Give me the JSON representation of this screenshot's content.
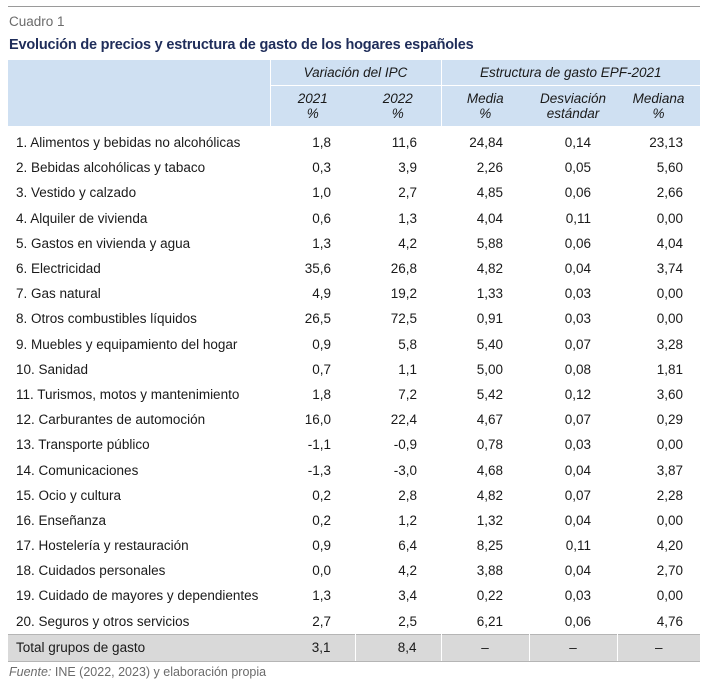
{
  "cuadro_label": "Cuadro 1",
  "title": "Evolución de precios y estructura de gasto de los hogares españoles",
  "header": {
    "group_ipc": "Variación del IPC",
    "group_epf": "Estructura de gasto EPF-2021",
    "columns": [
      {
        "line1": "2021",
        "line2": "%"
      },
      {
        "line1": "2022",
        "line2": "%"
      },
      {
        "line1": "Media",
        "line2": "%"
      },
      {
        "line1": "Desviación",
        "line2": "estándar"
      },
      {
        "line1": "Mediana",
        "line2": "%"
      }
    ]
  },
  "rows": [
    {
      "label": "1. Alimentos y bebidas no alcohólicas",
      "ipc2021": "1,8",
      "ipc2022": "11,6",
      "media": "24,84",
      "desv": "0,14",
      "mediana": "23,13"
    },
    {
      "label": "2. Bebidas alcohólicas y tabaco",
      "ipc2021": "0,3",
      "ipc2022": "3,9",
      "media": "2,26",
      "desv": "0,05",
      "mediana": "5,60"
    },
    {
      "label": "3. Vestido y calzado",
      "ipc2021": "1,0",
      "ipc2022": "2,7",
      "media": "4,85",
      "desv": "0,06",
      "mediana": "2,66"
    },
    {
      "label": "4. Alquiler de vivienda",
      "ipc2021": "0,6",
      "ipc2022": "1,3",
      "media": "4,04",
      "desv": "0,11",
      "mediana": "0,00"
    },
    {
      "label": "5. Gastos en vivienda y agua",
      "ipc2021": "1,3",
      "ipc2022": "4,2",
      "media": "5,88",
      "desv": "0,06",
      "mediana": "4,04"
    },
    {
      "label": "6. Electricidad",
      "ipc2021": "35,6",
      "ipc2022": "26,8",
      "media": "4,82",
      "desv": "0,04",
      "mediana": "3,74"
    },
    {
      "label": "7. Gas natural",
      "ipc2021": "4,9",
      "ipc2022": "19,2",
      "media": "1,33",
      "desv": "0,03",
      "mediana": "0,00"
    },
    {
      "label": "8. Otros combustibles líquidos",
      "ipc2021": "26,5",
      "ipc2022": "72,5",
      "media": "0,91",
      "desv": "0,03",
      "mediana": "0,00"
    },
    {
      "label": "9. Muebles y equipamiento del hogar",
      "ipc2021": "0,9",
      "ipc2022": "5,8",
      "media": "5,40",
      "desv": "0,07",
      "mediana": "3,28"
    },
    {
      "label": "10. Sanidad",
      "ipc2021": "0,7",
      "ipc2022": "1,1",
      "media": "5,00",
      "desv": "0,08",
      "mediana": "1,81"
    },
    {
      "label": "11. Turismos, motos y mantenimiento",
      "ipc2021": "1,8",
      "ipc2022": "7,2",
      "media": "5,42",
      "desv": "0,12",
      "mediana": "3,60"
    },
    {
      "label": "12. Carburantes de automoción",
      "ipc2021": "16,0",
      "ipc2022": "22,4",
      "media": "4,67",
      "desv": "0,07",
      "mediana": "0,29"
    },
    {
      "label": "13. Transporte público",
      "ipc2021": "-1,1",
      "ipc2022": "-0,9",
      "media": "0,78",
      "desv": "0,03",
      "mediana": "0,00"
    },
    {
      "label": "14. Comunicaciones",
      "ipc2021": "-1,3",
      "ipc2022": "-3,0",
      "media": "4,68",
      "desv": "0,04",
      "mediana": "3,87"
    },
    {
      "label": "15. Ocio y cultura",
      "ipc2021": "0,2",
      "ipc2022": "2,8",
      "media": "4,82",
      "desv": "0,07",
      "mediana": "2,28"
    },
    {
      "label": "16. Enseñanza",
      "ipc2021": "0,2",
      "ipc2022": "1,2",
      "media": "1,32",
      "desv": "0,04",
      "mediana": "0,00"
    },
    {
      "label": "17. Hostelería y restauración",
      "ipc2021": "0,9",
      "ipc2022": "6,4",
      "media": "8,25",
      "desv": "0,11",
      "mediana": "4,20"
    },
    {
      "label": "18. Cuidados personales",
      "ipc2021": "0,0",
      "ipc2022": "4,2",
      "media": "3,88",
      "desv": "0,04",
      "mediana": "2,70"
    },
    {
      "label": "19. Cuidado de mayores y dependientes",
      "ipc2021": "1,3",
      "ipc2022": "3,4",
      "media": "0,22",
      "desv": "0,03",
      "mediana": "0,00"
    },
    {
      "label": "20. Seguros y otros servicios",
      "ipc2021": "2,7",
      "ipc2022": "2,5",
      "media": "6,21",
      "desv": "0,06",
      "mediana": "4,76"
    }
  ],
  "total": {
    "label": "Total grupos de gasto",
    "ipc2021": "3,1",
    "ipc2022": "8,4",
    "media": "–",
    "desv": "–",
    "mediana": "–"
  },
  "source": {
    "label": "Fuente:",
    "text": " INE (2022, 2023) y elaboración propia"
  }
}
